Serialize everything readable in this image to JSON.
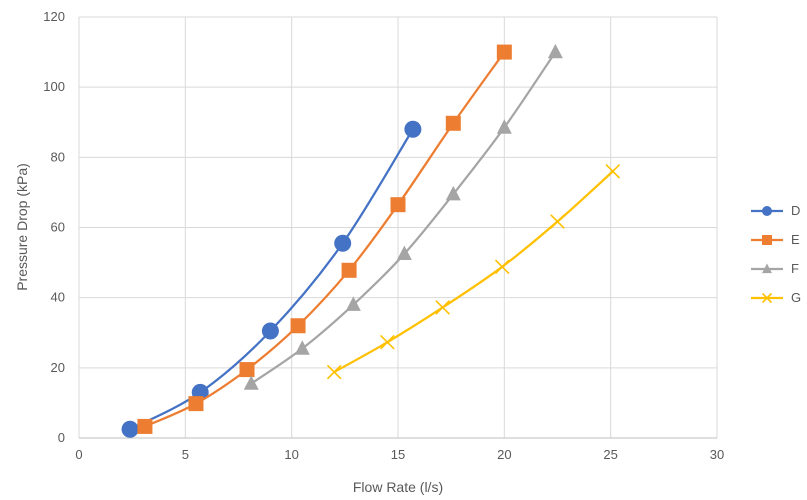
{
  "chart_data": {
    "type": "scatter",
    "title": "",
    "xlabel": "Flow Rate (l/s)",
    "ylabel": "Pressure Drop (kPa)",
    "xlim": [
      0,
      30
    ],
    "ylim": [
      0,
      120
    ],
    "xticks": [
      0,
      5,
      10,
      15,
      20,
      25,
      30
    ],
    "yticks": [
      0,
      20,
      40,
      60,
      80,
      100,
      120
    ],
    "grid": true,
    "legend_position": "right",
    "series": [
      {
        "name": "D",
        "color": "#4472C4",
        "marker": "circle",
        "x": [
          2.4,
          5.7,
          9.0,
          12.4,
          15.7
        ],
        "y": [
          2.5,
          13.0,
          30.5,
          55.5,
          88.0
        ]
      },
      {
        "name": "E",
        "color": "#ED7D31",
        "marker": "square",
        "x": [
          3.1,
          5.5,
          7.9,
          10.3,
          12.7,
          15.0,
          17.6,
          20.0
        ],
        "y": [
          3.3,
          9.8,
          19.5,
          32.0,
          47.8,
          66.5,
          89.7,
          110.0
        ]
      },
      {
        "name": "F",
        "color": "#A5A5A5",
        "marker": "triangle",
        "x": [
          8.1,
          10.5,
          12.9,
          15.3,
          17.6,
          20.0,
          22.4
        ],
        "y": [
          15.5,
          25.5,
          38.0,
          52.5,
          69.5,
          88.5,
          110.0
        ]
      },
      {
        "name": "G",
        "color": "#FFC000",
        "marker": "x",
        "x": [
          12.0,
          14.5,
          17.1,
          19.9,
          22.5,
          25.1
        ],
        "y": [
          18.8,
          27.3,
          37.2,
          48.8,
          61.7,
          76.0
        ]
      }
    ]
  }
}
